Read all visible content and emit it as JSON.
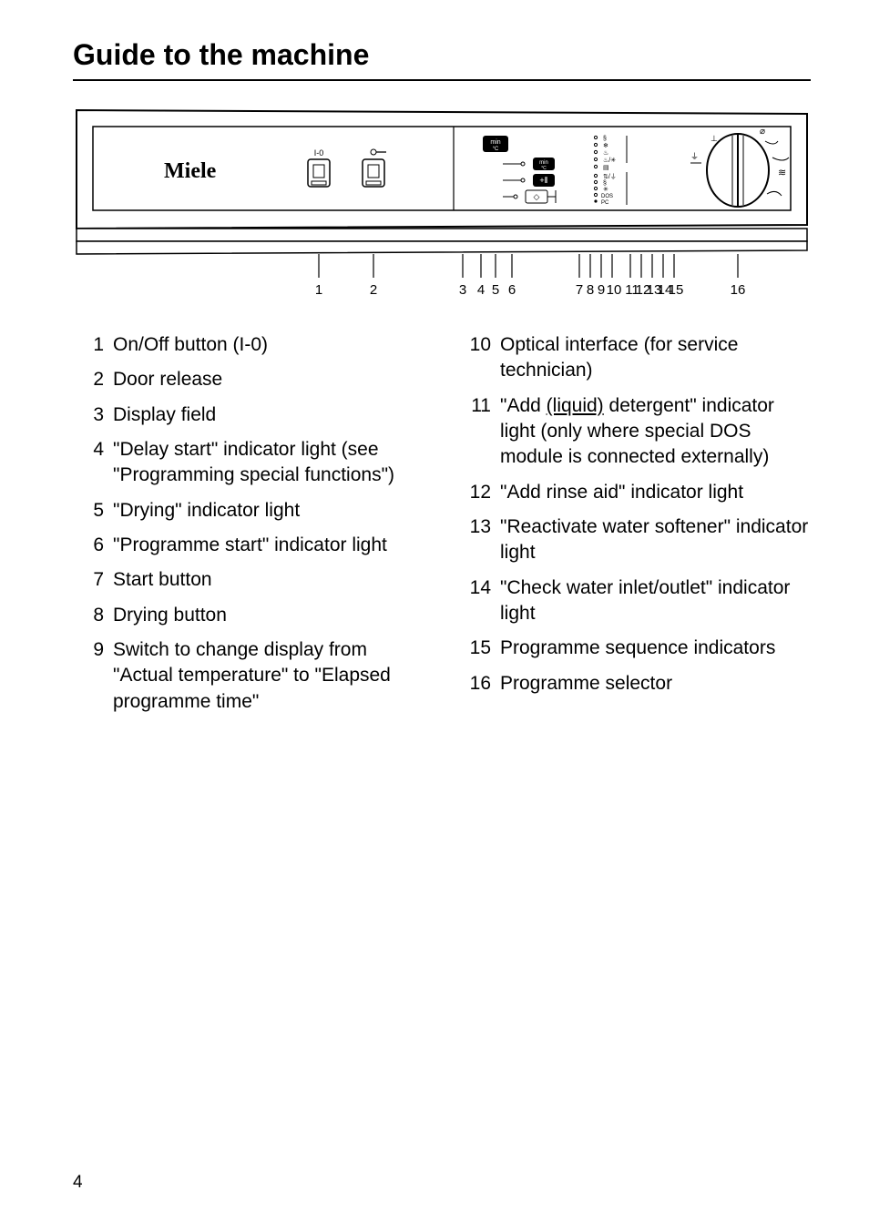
{
  "title": "Guide to the machine",
  "page_number": "4",
  "diagram": {
    "brand": "Miele",
    "btn1_label": "I-0",
    "btn3_label": "min",
    "btn3_sub": "°C",
    "btn4_label": "min",
    "btn4_sub": "°C",
    "callouts": [
      "1",
      "2",
      "3",
      "4",
      "5",
      "6",
      "7",
      "8",
      "9",
      "10",
      "11",
      "12",
      "13",
      "14",
      "15",
      "16"
    ],
    "stroke": "#000000",
    "fill": "#ffffff"
  },
  "legend_left": [
    {
      "n": "1",
      "pre": "On/Off button (I-0)"
    },
    {
      "n": "2",
      "pre": "Door release"
    },
    {
      "n": "3",
      "pre": "Display field"
    },
    {
      "n": "4",
      "pre": "\"Delay start\" indicator light (see \"Programming special functions\")"
    },
    {
      "n": "5",
      "pre": "\"Drying\" indicator light"
    },
    {
      "n": "6",
      "pre": "\"Programme start\" indicator light"
    },
    {
      "n": "7",
      "pre": "Start button"
    },
    {
      "n": "8",
      "pre": "Drying button"
    },
    {
      "n": "9",
      "pre": "Switch to change display from \"Actual temperature\" to \"Elapsed programme time\""
    }
  ],
  "legend_right": [
    {
      "n": "10",
      "pre": "Optical interface (for service technician)"
    },
    {
      "n": "11",
      "pre": "\"Add ",
      "underline": "(liquid)",
      "post": " detergent\" indicator light (only where special DOS module is connected externally)"
    },
    {
      "n": "12",
      "pre": "\"Add rinse aid\" indicator light"
    },
    {
      "n": "13",
      "pre": "\"Reactivate water softener\" indicator light"
    },
    {
      "n": "14",
      "pre": "\"Check water inlet/outlet\" indicator light"
    },
    {
      "n": "15",
      "pre": "Programme sequence indicators"
    },
    {
      "n": "16",
      "pre": "Programme selector"
    }
  ]
}
